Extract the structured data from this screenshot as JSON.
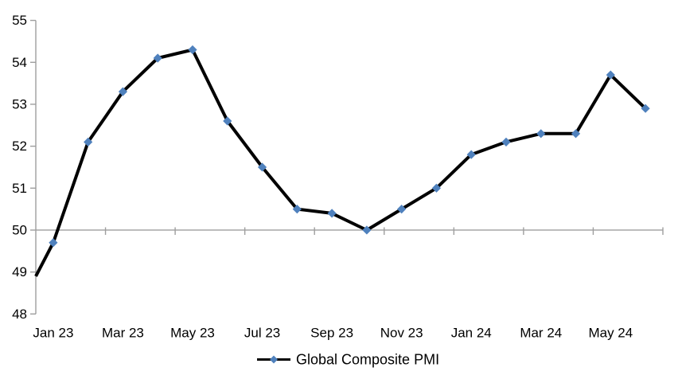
{
  "legend": {
    "label": "Global Composite PMI",
    "position": "bottom-center"
  },
  "colors": {
    "series_line": "#000000",
    "marker_fill": "#4f81bd",
    "axis_line": "#9e9e9e",
    "tick_text": "#000000",
    "background": "#ffffff"
  },
  "chart_data": {
    "type": "line",
    "title": "",
    "xlabel": "",
    "ylabel": "",
    "categories": [
      "Jan 23",
      "Feb 23",
      "Mar 23",
      "Apr 23",
      "May 23",
      "Jun 23",
      "Jul 23",
      "Aug 23",
      "Sep 23",
      "Oct 23",
      "Nov 23",
      "Dec 23",
      "Jan 24",
      "Feb 24",
      "Mar 24",
      "Apr 24",
      "May 24",
      "Jun 24"
    ],
    "series": [
      {
        "name": "Global Composite PMI",
        "values": [
          49.7,
          52.1,
          53.3,
          54.1,
          54.3,
          52.6,
          51.5,
          50.5,
          50.4,
          50.0,
          50.5,
          51.0,
          51.8,
          52.1,
          52.3,
          52.3,
          53.7,
          52.9
        ],
        "line_color": "#000000",
        "marker": "diamond",
        "marker_color": "#4f81bd"
      }
    ],
    "lead_in_point": {
      "label": "Dec 22",
      "value": 48.9,
      "note": "line starts at the left axis edge without a marker"
    },
    "y_axis": {
      "min": 48,
      "max": 55,
      "tick_interval": 1,
      "tick_labels": [
        "48",
        "49",
        "50",
        "51",
        "52",
        "53",
        "54",
        "55"
      ]
    },
    "x_axis": {
      "tick_labels": [
        "Jan 23",
        "Mar 23",
        "May 23",
        "Jul 23",
        "Sep 23",
        "Nov 23",
        "Jan 24",
        "Mar 24",
        "May 24"
      ],
      "label_every_n": 2,
      "axis_crosses_at": 50
    },
    "grid": "off",
    "legend_position": "bottom-center"
  }
}
